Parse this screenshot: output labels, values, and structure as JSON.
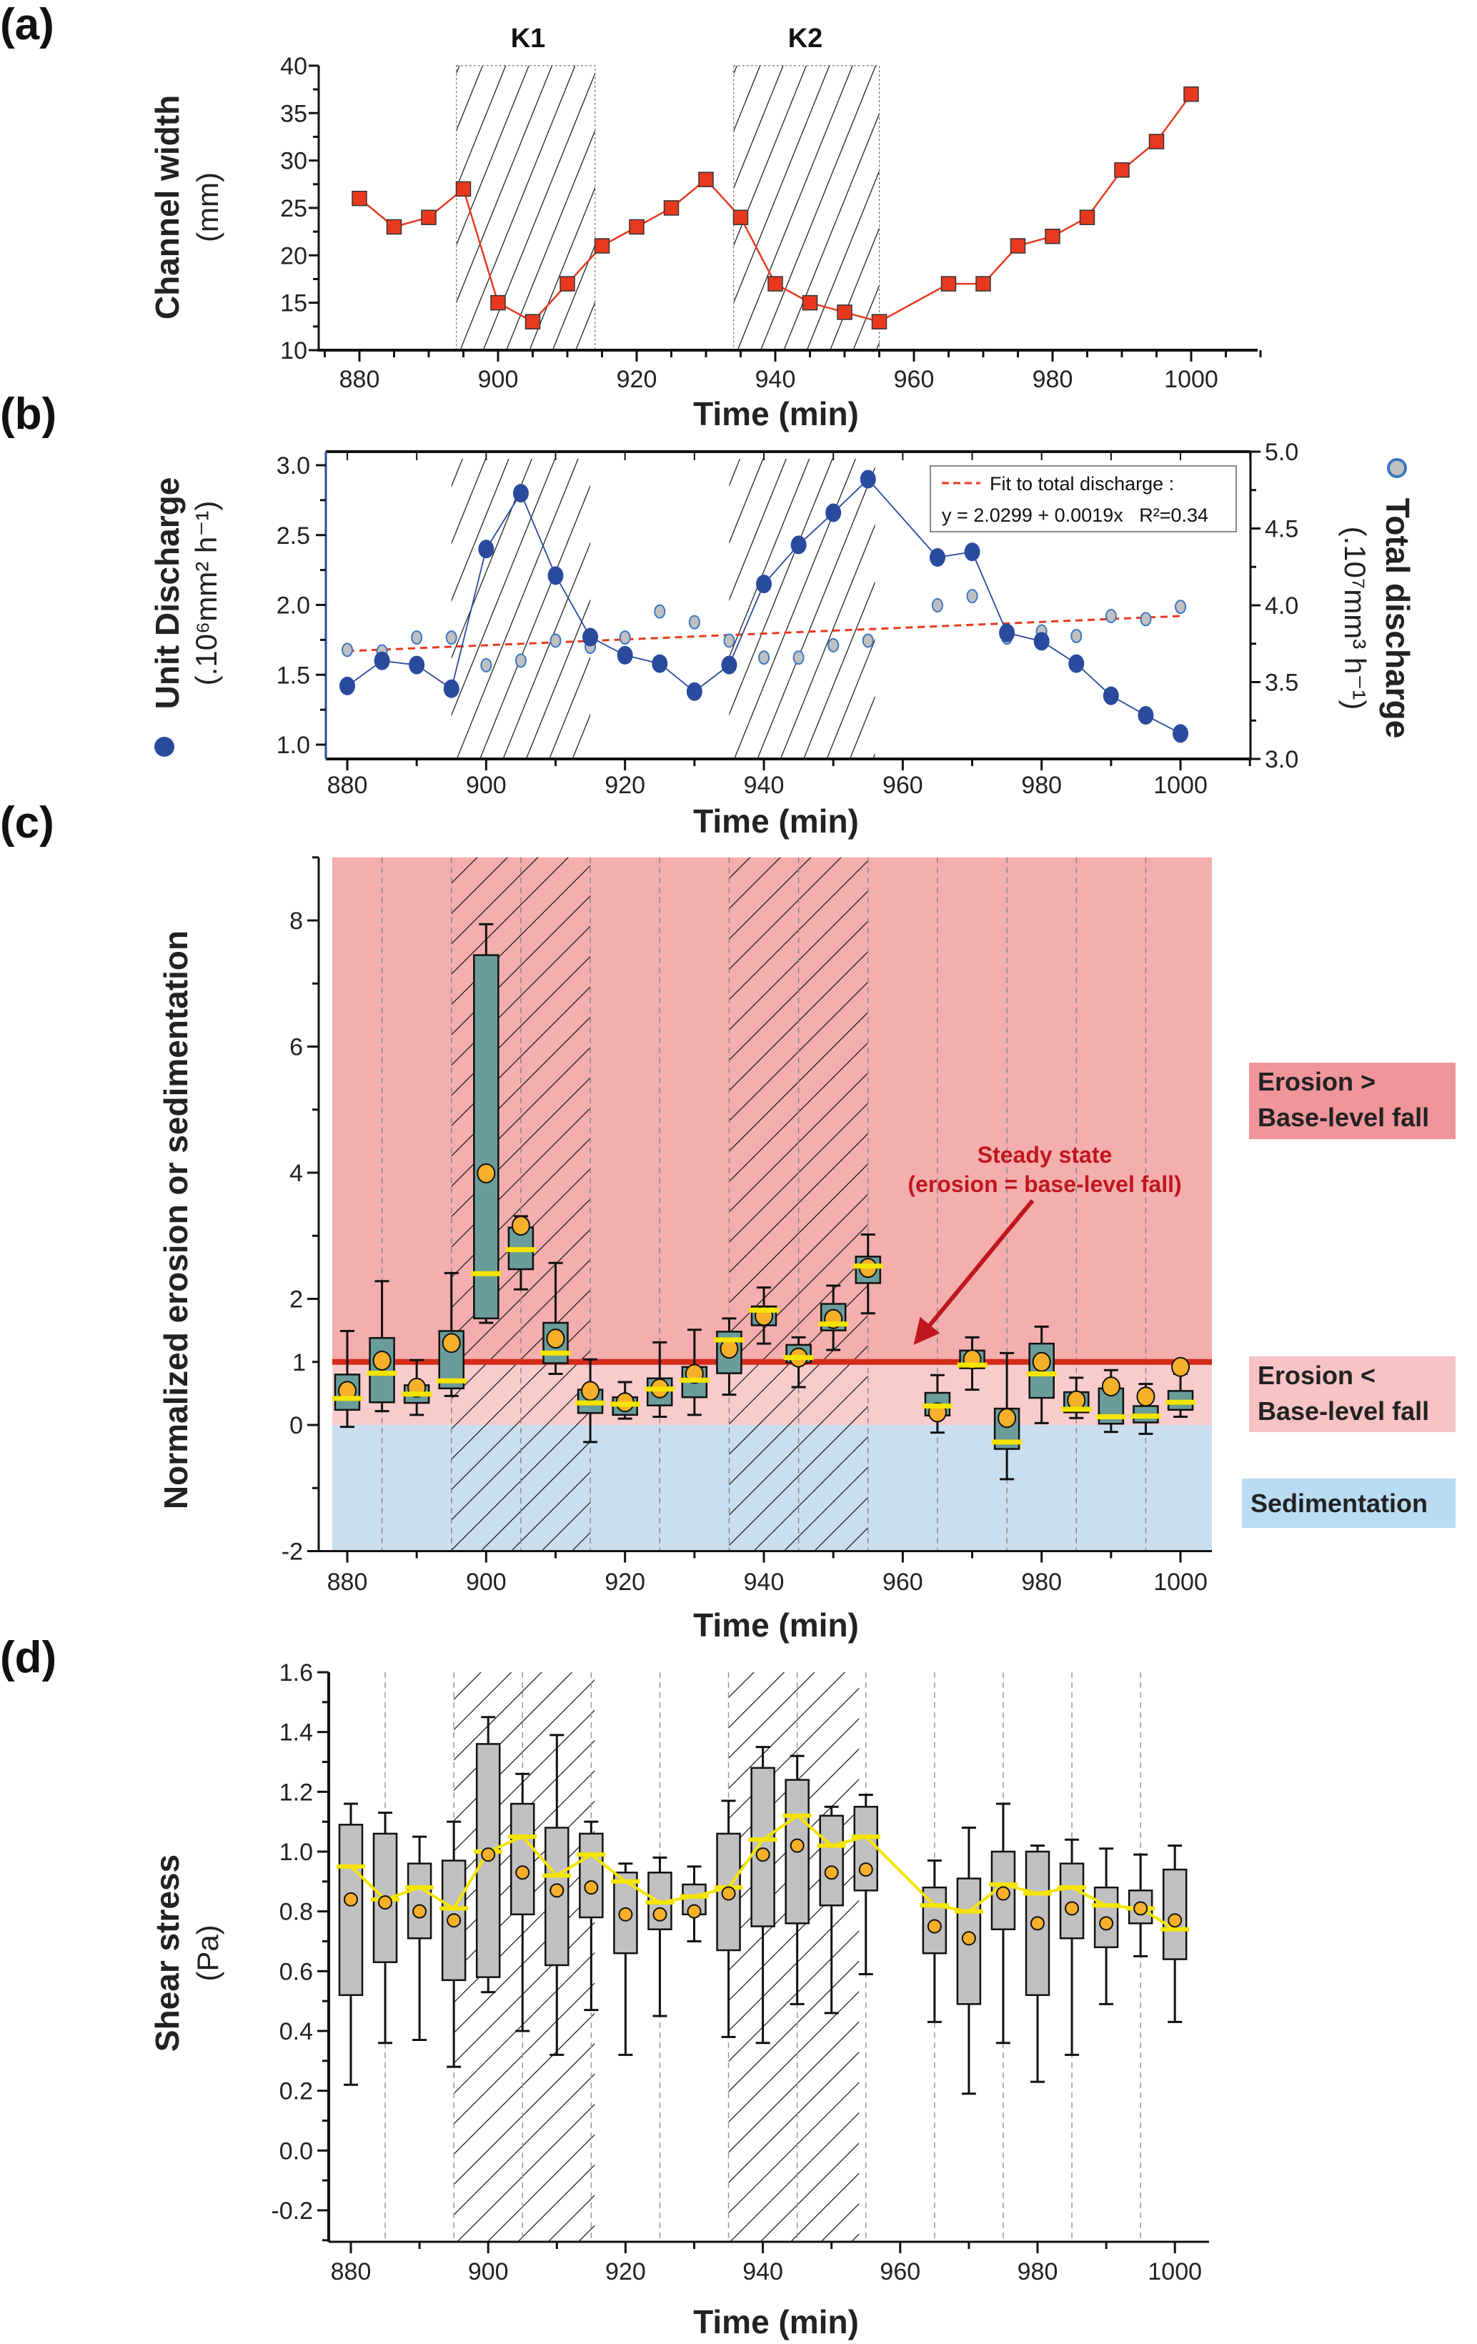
{
  "chart_data": [
    {
      "panel": "(a)",
      "type": "line",
      "xlabel": "Time (min)",
      "ylabel": "Channel width",
      "ylabel_unit": "(mm)",
      "xlim": [
        875,
        1010
      ],
      "ylim": [
        10,
        40
      ],
      "xticks": [
        880,
        900,
        920,
        940,
        960,
        980,
        1000
      ],
      "yticks": [
        10,
        15,
        20,
        25,
        30,
        35,
        40
      ],
      "shaded_periods": [
        {
          "label": "K1",
          "range": [
            894,
            914
          ]
        },
        {
          "label": "K2",
          "range": [
            934,
            955
          ]
        }
      ],
      "x": [
        880,
        885,
        890,
        895,
        900,
        905,
        910,
        915,
        920,
        925,
        930,
        935,
        940,
        945,
        950,
        955,
        965,
        970,
        975,
        980,
        985,
        990,
        995,
        1000
      ],
      "y": [
        26,
        23,
        24,
        27,
        15,
        13,
        17,
        21,
        23,
        25,
        28,
        24,
        17,
        15,
        14,
        13,
        17,
        17,
        21,
        22,
        24,
        29,
        32,
        37
      ],
      "color": "#e8391f"
    },
    {
      "panel": "(b)",
      "type": "scatter",
      "xlabel": "Time (min)",
      "ylabel_left": "Unit Discharge",
      "ylabel_left_unit": "(.10⁶mm² h⁻¹)",
      "ylabel_right": "Total discharge",
      "ylabel_right_unit": "(.10⁷mm³ h⁻¹)",
      "xlim": [
        875,
        1010
      ],
      "ylim_left": [
        0.9,
        3.1
      ],
      "ylim_right": [
        3.0,
        5.0
      ],
      "xticks": [
        880,
        900,
        920,
        940,
        960,
        980,
        1000
      ],
      "yticks_left": [
        "1.0",
        "1.5",
        "2.0",
        "2.5",
        "3.0"
      ],
      "yticks_right": [
        "3.0",
        "3.5",
        "4.0",
        "4.5",
        "5.0"
      ],
      "shaded_periods": [
        [
          895,
          915
        ],
        [
          935,
          956
        ]
      ],
      "x": [
        880,
        885,
        890,
        895,
        900,
        905,
        910,
        915,
        920,
        925,
        930,
        935,
        940,
        945,
        950,
        955,
        965,
        970,
        975,
        980,
        985,
        990,
        995,
        1000
      ],
      "series": [
        {
          "name": "Unit Discharge",
          "axis": "left",
          "color": "#2a4a9e",
          "values": [
            1.42,
            1.6,
            1.57,
            1.4,
            2.4,
            2.8,
            2.21,
            1.77,
            1.64,
            1.58,
            1.38,
            1.57,
            2.15,
            2.43,
            2.66,
            2.9,
            2.34,
            2.38,
            1.8,
            1.74,
            1.58,
            1.35,
            1.21,
            1.08
          ]
        },
        {
          "name": "Total discharge",
          "axis": "right",
          "color": "#c0c0c0",
          "edge": "#3a76c4",
          "values": [
            3.71,
            3.7,
            3.79,
            3.79,
            3.61,
            3.64,
            3.77,
            3.73,
            3.79,
            3.96,
            3.89,
            3.77,
            3.66,
            3.66,
            3.74,
            3.77,
            4.0,
            4.06,
            3.79,
            3.83,
            3.8,
            3.93,
            3.91,
            3.99
          ]
        }
      ],
      "fit": {
        "legend": "Fit to total discharge :",
        "equation": "y = 2.0299 + 0.0019x   R²=0.34",
        "intercept": 2.0299,
        "slope": 0.0019,
        "color": "#e8391f"
      }
    },
    {
      "panel": "(c)",
      "type": "box",
      "xlabel": "Time (min)",
      "ylabel": "Normalized erosion or sedimentation",
      "xlim": [
        875,
        1005
      ],
      "ylim": [
        -2,
        9
      ],
      "xticks": [
        880,
        900,
        920,
        940,
        960,
        980,
        1000
      ],
      "yticks": [
        -2,
        0,
        2,
        4,
        6,
        8
      ],
      "reference_line": {
        "value": 1,
        "label": "1",
        "color": "#d42a1a"
      },
      "regions": [
        {
          "label_1": "Erosion >",
          "label_2": "Base-level fall",
          "range": [
            1,
            9
          ],
          "color": "#f4aeae",
          "label_bg": "#f0959a"
        },
        {
          "label_1": "Erosion <",
          "label_2": "Base-level fall",
          "range": [
            0,
            1
          ],
          "color": "#f8cccc",
          "label_bg": "#f7c3c5"
        },
        {
          "label_1": "Sedimentation",
          "range": [
            -2,
            0
          ],
          "color": "#c9dff0",
          "label_bg": "#b9dcf3"
        }
      ],
      "annotation": {
        "line1": "Steady state",
        "line2": "(erosion = base-level fall)",
        "color": "#c0161f"
      },
      "shaded_periods": [
        [
          895,
          915
        ],
        [
          935,
          955
        ]
      ],
      "box_color": "#6a9c9a",
      "x": [
        880,
        885,
        890,
        895,
        900,
        905,
        910,
        915,
        920,
        925,
        930,
        935,
        940,
        945,
        950,
        955,
        965,
        970,
        975,
        980,
        985,
        990,
        995,
        1000
      ],
      "whisker_high": [
        1.49,
        2.28,
        1.03,
        2.41,
        7.94,
        3.31,
        2.57,
        1.04,
        0.68,
        1.31,
        1.51,
        1.69,
        2.18,
        1.39,
        2.21,
        3.02,
        0.79,
        1.39,
        1.14,
        1.56,
        0.75,
        0.87,
        0.65,
        0.81
      ],
      "q3": [
        0.8,
        1.38,
        0.63,
        1.49,
        7.45,
        3.13,
        1.62,
        0.56,
        0.44,
        0.74,
        0.92,
        1.48,
        1.88,
        1.27,
        1.92,
        2.67,
        0.51,
        1.18,
        0.26,
        1.29,
        0.52,
        0.58,
        0.3,
        0.54
      ],
      "median": [
        0.42,
        0.82,
        0.49,
        0.7,
        2.4,
        2.78,
        1.14,
        0.35,
        0.33,
        0.57,
        0.71,
        1.35,
        1.82,
        1.07,
        1.6,
        2.52,
        0.3,
        0.95,
        -0.27,
        0.81,
        0.25,
        0.13,
        0.14,
        0.36
      ],
      "q1": [
        0.24,
        0.36,
        0.35,
        0.58,
        1.69,
        2.47,
        0.98,
        0.19,
        0.16,
        0.31,
        0.44,
        0.82,
        1.58,
        0.99,
        1.5,
        2.25,
        0.15,
        0.9,
        -0.38,
        0.43,
        0.2,
        0.02,
        0.04,
        0.24
      ],
      "whisker_low": [
        -0.03,
        0.22,
        0.16,
        0.46,
        1.62,
        2.15,
        0.81,
        -0.27,
        0.1,
        0.13,
        0.16,
        0.48,
        1.29,
        0.6,
        1.19,
        1.77,
        -0.12,
        0.56,
        -0.86,
        0.03,
        0.11,
        -0.11,
        -0.14,
        0.13
      ],
      "mean": [
        0.54,
        1.02,
        0.59,
        1.3,
        3.99,
        3.16,
        1.37,
        0.54,
        0.36,
        0.58,
        0.81,
        1.21,
        1.73,
        1.07,
        1.68,
        2.49,
        0.2,
        1.04,
        0.11,
        1.0,
        0.39,
        0.61,
        0.45,
        0.92
      ]
    },
    {
      "panel": "(d)",
      "type": "box",
      "xlabel": "Time (min)",
      "ylabel": "Shear stress",
      "ylabel_unit": "(Pa)",
      "xlim": [
        875,
        1005
      ],
      "ylim": [
        -0.3,
        1.6
      ],
      "xticks": [
        880,
        900,
        920,
        940,
        960,
        980,
        1000
      ],
      "yticks": [
        "-0.2",
        "0.0",
        "0.2",
        "0.4",
        "0.6",
        "0.8",
        "1.0",
        "1.2",
        "1.4",
        "1.6"
      ],
      "shaded_periods": [
        [
          895,
          915.5
        ],
        [
          935,
          954
        ]
      ],
      "box_color": "#c0c0c0",
      "median_line_color": "#f5e400",
      "x": [
        880,
        885,
        890,
        895,
        900,
        905,
        910,
        915,
        920,
        925,
        930,
        935,
        940,
        945,
        950,
        955,
        965,
        970,
        975,
        980,
        985,
        990,
        995,
        1000
      ],
      "whisker_high": [
        1.16,
        1.13,
        1.05,
        1.1,
        1.45,
        1.26,
        1.39,
        1.1,
        0.96,
        0.98,
        0.95,
        1.17,
        1.35,
        1.32,
        1.15,
        1.19,
        0.97,
        1.08,
        1.16,
        1.02,
        1.04,
        1.01,
        0.99,
        1.02
      ],
      "q3": [
        1.09,
        1.06,
        0.96,
        0.97,
        1.36,
        1.16,
        1.08,
        1.06,
        0.93,
        0.93,
        0.89,
        1.06,
        1.28,
        1.24,
        1.12,
        1.15,
        0.88,
        0.91,
        1.0,
        1.0,
        0.96,
        0.88,
        0.87,
        0.94
      ],
      "median": [
        0.95,
        0.84,
        0.88,
        0.81,
        1.0,
        1.05,
        0.92,
        0.99,
        0.9,
        0.83,
        0.85,
        0.88,
        1.04,
        1.12,
        1.02,
        1.05,
        0.82,
        0.8,
        0.89,
        0.86,
        0.88,
        0.82,
        0.81,
        0.74
      ],
      "q1": [
        0.52,
        0.63,
        0.71,
        0.57,
        0.58,
        0.79,
        0.62,
        0.78,
        0.66,
        0.74,
        0.79,
        0.67,
        0.75,
        0.76,
        0.82,
        0.87,
        0.66,
        0.49,
        0.74,
        0.52,
        0.71,
        0.68,
        0.76,
        0.64
      ],
      "whisker_low": [
        0.22,
        0.36,
        0.37,
        0.28,
        0.53,
        0.4,
        0.32,
        0.47,
        0.32,
        0.45,
        0.7,
        0.38,
        0.36,
        0.49,
        0.46,
        0.59,
        0.43,
        0.19,
        0.36,
        0.23,
        0.32,
        0.49,
        0.65,
        0.43
      ],
      "mean": [
        0.84,
        0.83,
        0.8,
        0.77,
        0.99,
        0.93,
        0.87,
        0.88,
        0.79,
        0.79,
        0.8,
        0.86,
        0.99,
        1.02,
        0.93,
        0.94,
        0.75,
        0.71,
        0.86,
        0.76,
        0.81,
        0.76,
        0.81,
        0.77
      ]
    }
  ],
  "colors": {
    "mean_marker": "#f6b02a",
    "median_bar": "#f5e400"
  }
}
